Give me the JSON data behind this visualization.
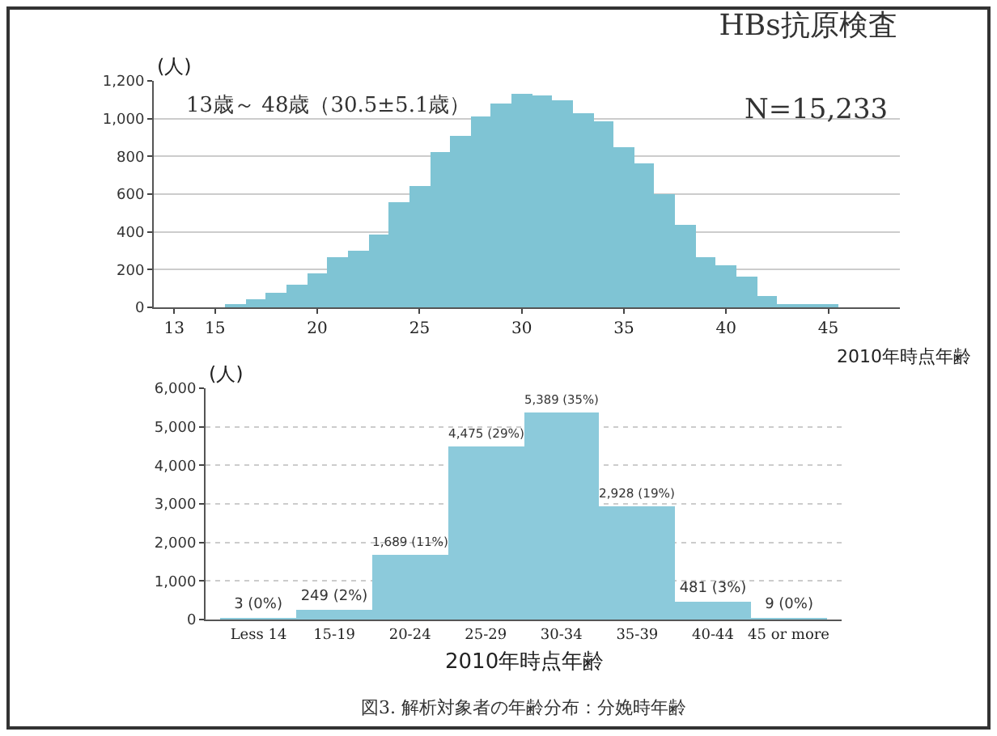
{
  "chart_data": [
    {
      "type": "histogram",
      "title": "HBs抗原検査",
      "xlabel": "2010年時点年齢",
      "ylabel": "(人)",
      "annotations": [
        "13歳～ 48歳（30.5±5.1歳）",
        "N=15,233"
      ],
      "bins": [
        12.5,
        13.5,
        14.5,
        15.5,
        16.5,
        17.5,
        18.5,
        19.5,
        20.5,
        21.5,
        22.5,
        23.5,
        24.5,
        25.5,
        26.5,
        27.5,
        28.5,
        29.5,
        30.5,
        31.5,
        32.5,
        33.5,
        34.5,
        35.5,
        36.5,
        37.5,
        38.5,
        39.5,
        40.5,
        41.5,
        42.5,
        43.5,
        44.5,
        45.5,
        46.5,
        47.5,
        48.5
      ],
      "values": [
        0,
        0,
        0,
        20,
        40,
        80,
        120,
        180,
        270,
        300,
        390,
        560,
        640,
        820,
        910,
        1010,
        1080,
        1130,
        1120,
        1100,
        1030,
        990,
        850,
        760,
        600,
        440,
        270,
        220,
        160,
        60,
        20,
        10,
        10,
        0,
        0,
        0
      ],
      "color": "#7fc4d4",
      "xlim": [
        12,
        48.5
      ],
      "xticks": [
        13,
        15,
        20,
        25,
        30,
        35,
        40,
        45
      ],
      "ylim": [
        0,
        1200
      ],
      "yticks": [
        0,
        200,
        400,
        600,
        800,
        {
          "value": 1000,
          "label": "1,000"
        },
        {
          "value": 1200,
          "label": "1,200"
        }
      ],
      "grid": "y"
    },
    {
      "type": "bar",
      "xlabel": "2010年時点年齢",
      "ylabel": "(人)",
      "annotations": [
        "図3. 解析対象者の年齢分布：分娩時年齢"
      ],
      "categories": [
        "Less 14",
        "15-19",
        "20-24",
        "25-29",
        "30-34",
        "35-39",
        "40-44",
        "45 or more"
      ],
      "values": [
        3,
        249,
        1689,
        4475,
        5389,
        2928,
        481,
        9
      ],
      "value_labels": [
        "3 (0%)",
        "249 (2%)",
        "1,689 (11%)",
        "4,475 (29%)",
        "5,389 (35%)",
        "2,928 (19%)",
        "481 (3%)",
        "9 (0%)"
      ],
      "color": "#8ccadb",
      "ylim": [
        0,
        6000
      ],
      "yticks": [
        0,
        {
          "value": 1000,
          "label": "1,000"
        },
        {
          "value": 2000,
          "label": "2,000"
        },
        {
          "value": 3000,
          "label": "3,000"
        },
        {
          "value": 4000,
          "label": "4,000"
        },
        {
          "value": 5000,
          "label": "5,000"
        },
        {
          "value": 6000,
          "label": "6,000"
        }
      ],
      "grid": "y"
    }
  ]
}
